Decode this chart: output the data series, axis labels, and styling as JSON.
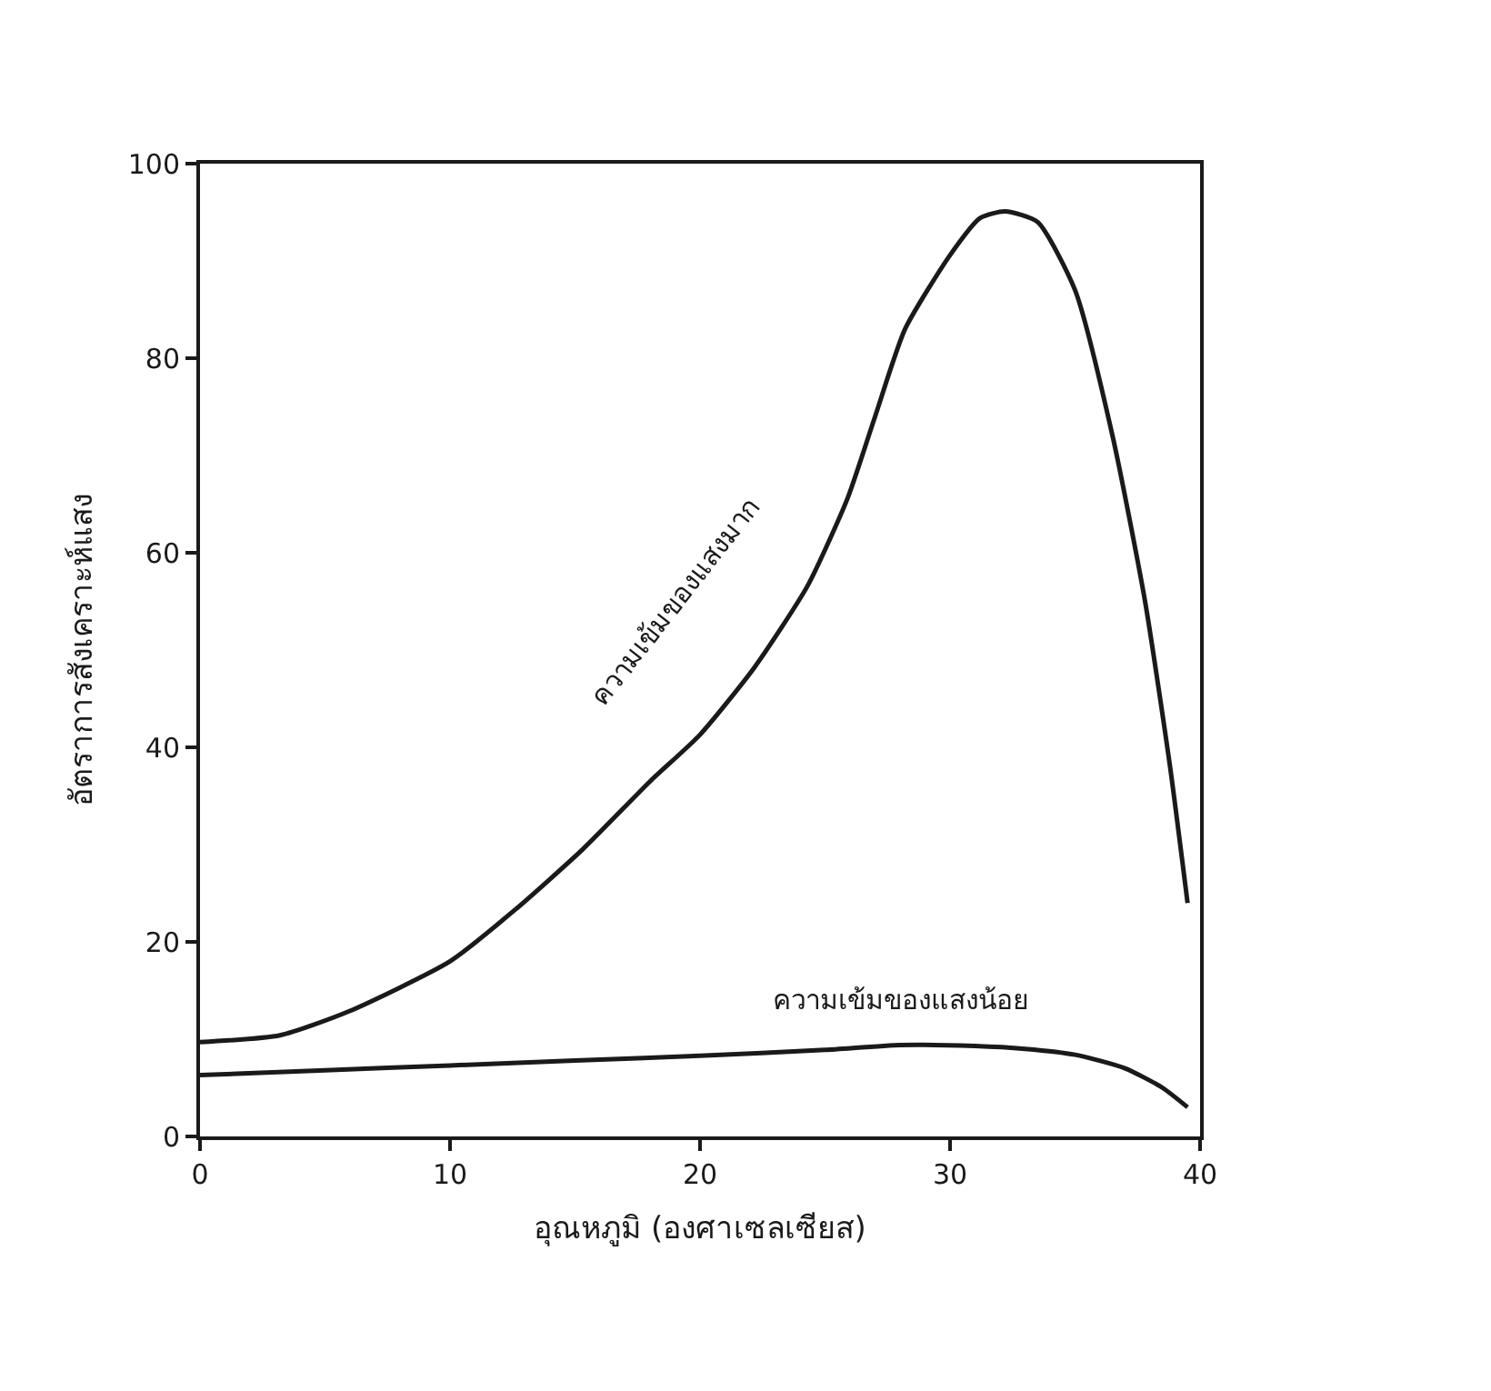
{
  "chart_data": {
    "type": "line",
    "xlabel": "อุณหภูมิ (องศาเซลเซียส)",
    "ylabel": "อัตราการสังเคราะห์แสง",
    "xlim": [
      0,
      40
    ],
    "xticks": [
      0,
      10,
      20,
      30,
      40
    ],
    "ylim": [
      0,
      100
    ],
    "yticks": [
      0,
      20,
      40,
      60,
      80,
      100
    ],
    "legend": false,
    "marker": "none",
    "line_style": "solid",
    "series": [
      {
        "name": "ความเข้มของแสงมาก",
        "color": "#1a1a1a",
        "x": [
          0,
          3.2,
          5.9,
          10,
          12.6,
          15.3,
          18,
          20,
          22.2,
          24.3,
          25.9,
          27,
          28.2,
          30,
          31.2,
          32.2,
          33.5,
          35,
          36.5,
          37.8,
          38.8,
          39.5
        ],
        "values": [
          9.7,
          10.4,
          12.8,
          18,
          23.3,
          29.5,
          36.5,
          41.3,
          48.3,
          56.6,
          65.6,
          74,
          83,
          90.6,
          94.4,
          95.1,
          94,
          87,
          72,
          55,
          38,
          24
        ]
      },
      {
        "name": "ความเข้มของแสงน้อย",
        "color": "#1a1a1a",
        "x": [
          0,
          5,
          10,
          15,
          20,
          25,
          28,
          31,
          33,
          35,
          37,
          38.5,
          39.5
        ],
        "values": [
          6.3,
          6.8,
          7.3,
          7.8,
          8.3,
          8.9,
          9.4,
          9.3,
          9,
          8.4,
          7,
          5,
          3
        ]
      }
    ]
  }
}
